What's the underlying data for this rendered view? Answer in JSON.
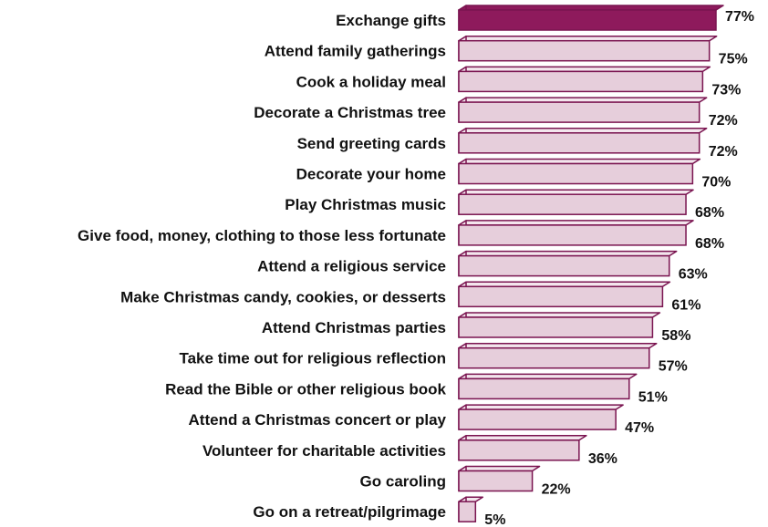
{
  "chart_data": {
    "type": "bar",
    "orientation": "horizontal",
    "categories": [
      "Exchange gifts",
      "Attend family gatherings",
      "Cook a holiday meal",
      "Decorate a Christmas tree",
      "Send greeting cards",
      "Decorate your home",
      "Play Christmas music",
      "Give food, money, clothing to those less fortunate",
      "Attend a religious service",
      "Make Christmas candy, cookies, or desserts",
      "Attend Christmas parties",
      "Take time out for religious reflection",
      "Read the Bible or other religious book",
      "Attend a Christmas concert or play",
      "Volunteer for charitable activities",
      "Go caroling",
      "Go on a retreat/pilgrimage"
    ],
    "values": [
      77,
      75,
      73,
      72,
      72,
      70,
      68,
      68,
      63,
      61,
      58,
      57,
      51,
      47,
      36,
      22,
      5
    ],
    "value_labels": [
      "77%",
      "75%",
      "73%",
      "72%",
      "72%",
      "70%",
      "68%",
      "68%",
      "63%",
      "61%",
      "58%",
      "57%",
      "51%",
      "47%",
      "36%",
      "22%",
      "5%"
    ],
    "unit": "%",
    "xlim": [
      0,
      77
    ],
    "title": "",
    "xlabel": "",
    "ylabel": "",
    "grid": false,
    "legend": "none",
    "colors": {
      "highlight_fill": "#8e1a5c",
      "bar_fill": "#e6cedb",
      "bar_side": "#f3e6ed",
      "bar_stroke": "#7a1450"
    }
  }
}
